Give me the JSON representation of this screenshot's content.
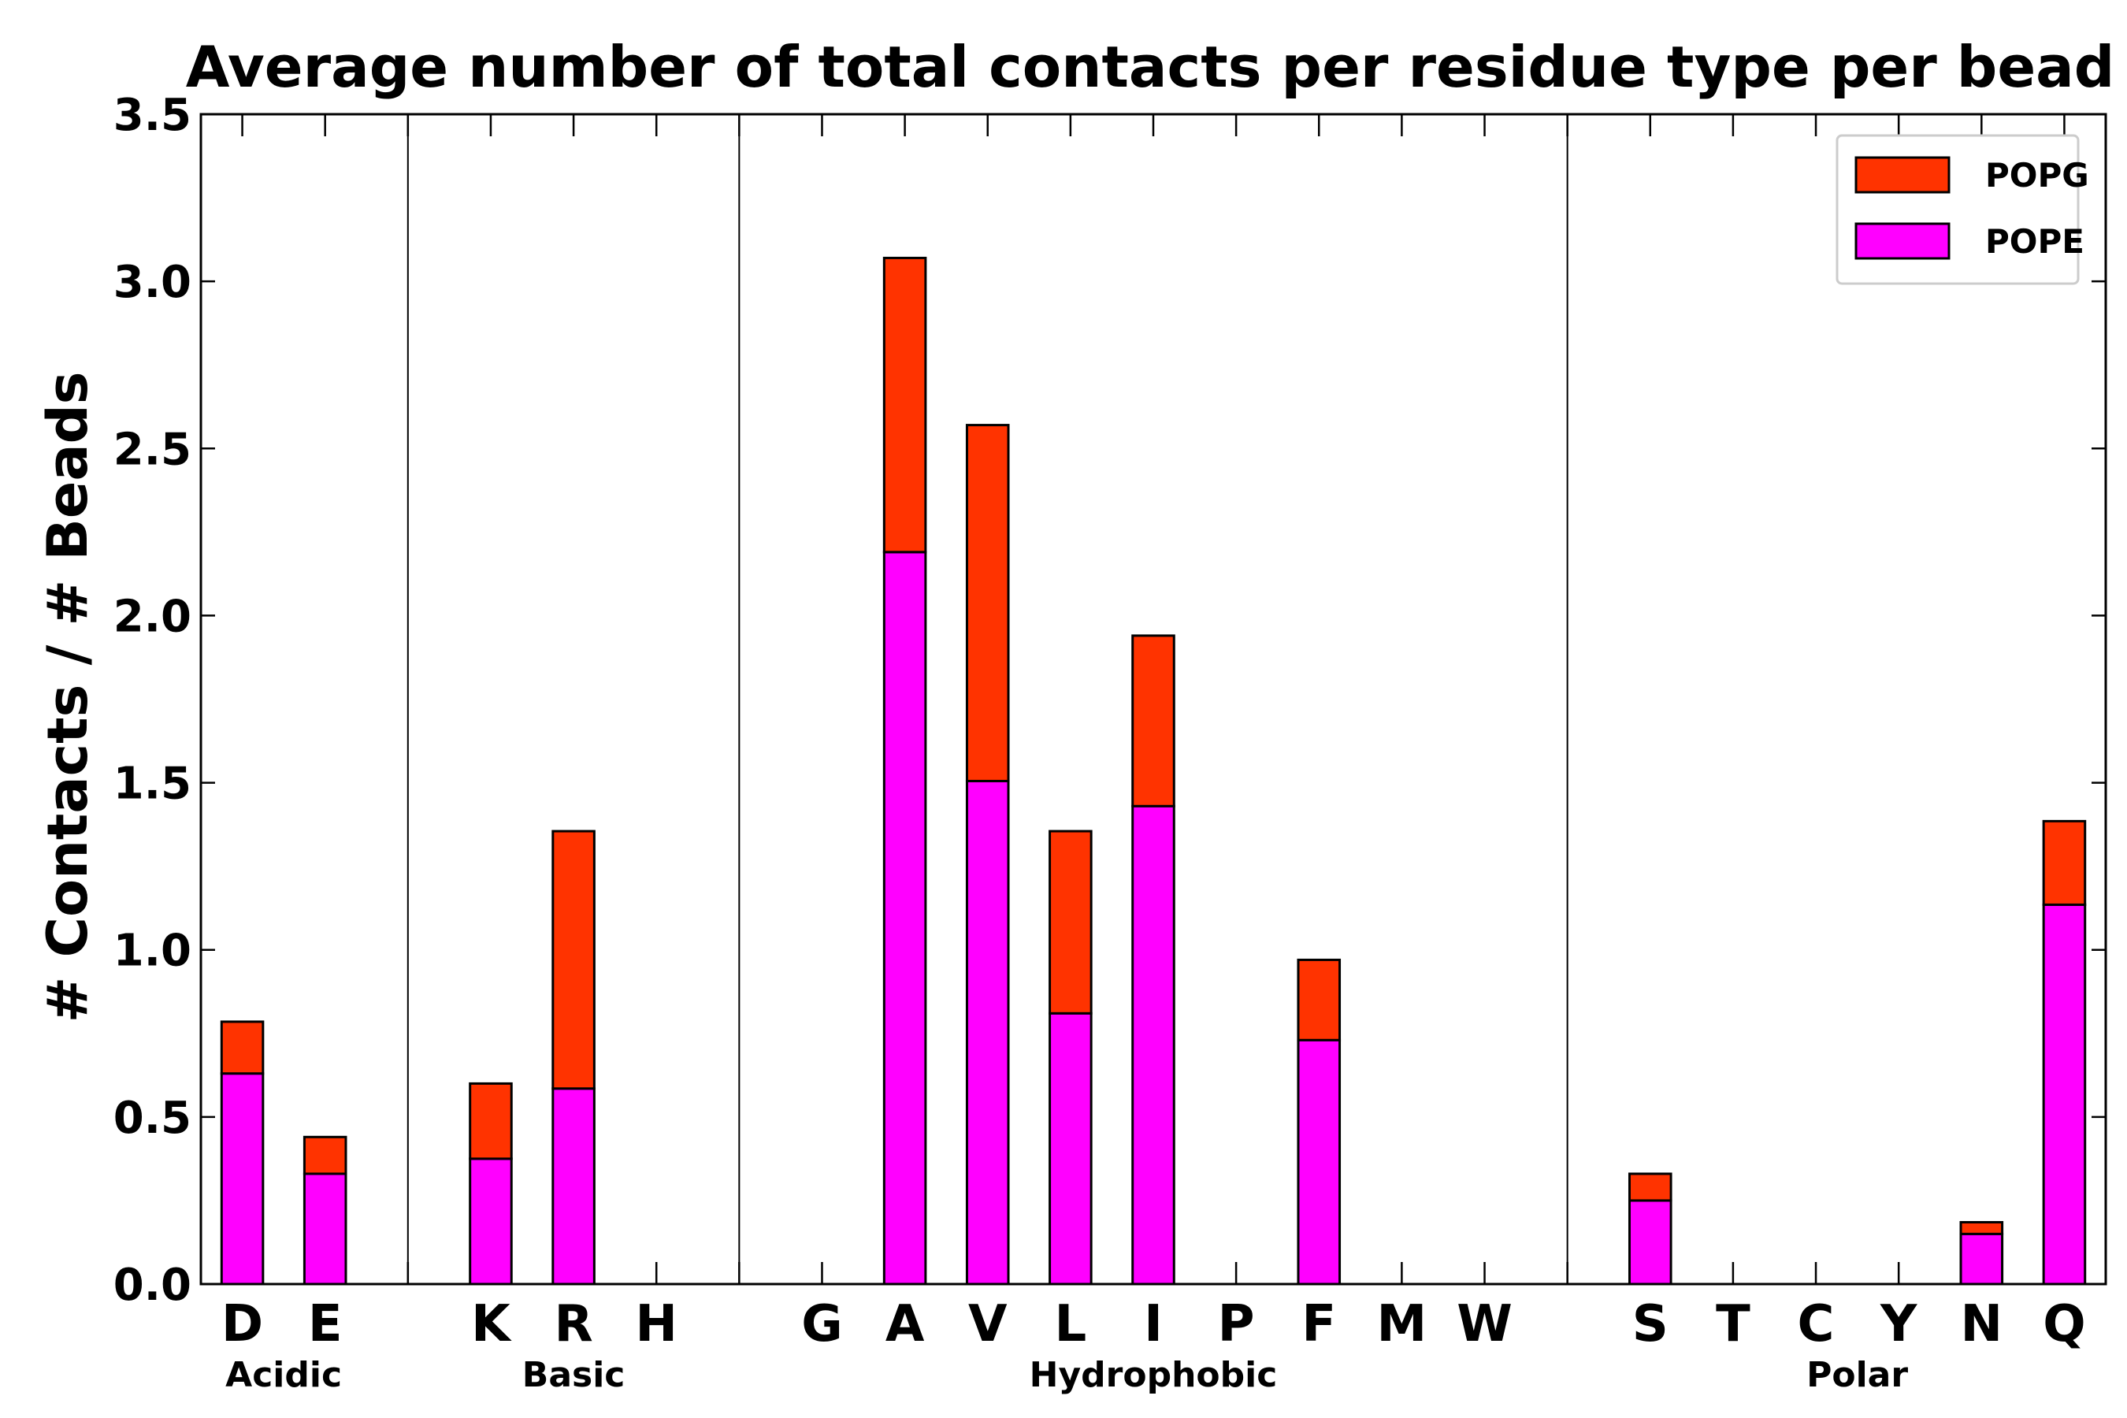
{
  "chart_data": {
    "type": "bar",
    "stacked": true,
    "title": "Average number of total contacts per residue type per bead",
    "xlabel": "",
    "ylabel": "# Contacts / # Beads",
    "ylim": [
      0,
      3.5
    ],
    "yticks": [
      "0.0",
      "0.5",
      "1.0",
      "1.5",
      "2.0",
      "2.5",
      "3.0",
      "3.5"
    ],
    "yticks_values": [
      0,
      0.5,
      1.0,
      1.5,
      2.0,
      2.5,
      3.0,
      3.5
    ],
    "slots": [
      {
        "label": "D",
        "pope": 0.63,
        "popg": 0.155
      },
      {
        "label": "E",
        "pope": 0.33,
        "popg": 0.11
      },
      {
        "label": "",
        "pope": 0,
        "popg": 0
      },
      {
        "label": "K",
        "pope": 0.375,
        "popg": 0.225
      },
      {
        "label": "R",
        "pope": 0.585,
        "popg": 0.77
      },
      {
        "label": "H",
        "pope": 0,
        "popg": 0
      },
      {
        "label": "",
        "pope": 0,
        "popg": 0
      },
      {
        "label": "G",
        "pope": 0,
        "popg": 0
      },
      {
        "label": "A",
        "pope": 2.19,
        "popg": 0.88
      },
      {
        "label": "V",
        "pope": 1.505,
        "popg": 1.065
      },
      {
        "label": "L",
        "pope": 0.81,
        "popg": 0.545
      },
      {
        "label": "I",
        "pope": 1.43,
        "popg": 0.51
      },
      {
        "label": "P",
        "pope": 0,
        "popg": 0
      },
      {
        "label": "F",
        "pope": 0.73,
        "popg": 0.24
      },
      {
        "label": "M",
        "pope": 0,
        "popg": 0
      },
      {
        "label": "W",
        "pope": 0,
        "popg": 0
      },
      {
        "label": "",
        "pope": 0,
        "popg": 0
      },
      {
        "label": "S",
        "pope": 0.25,
        "popg": 0.08
      },
      {
        "label": "T",
        "pope": 0,
        "popg": 0
      },
      {
        "label": "C",
        "pope": 0,
        "popg": 0
      },
      {
        "label": "Y",
        "pope": 0,
        "popg": 0
      },
      {
        "label": "N",
        "pope": 0.15,
        "popg": 0.035
      },
      {
        "label": "Q",
        "pope": 1.135,
        "popg": 0.25
      }
    ],
    "series": [
      {
        "name": "POPG",
        "color": "#ff3300"
      },
      {
        "name": "POPE",
        "color": "#ff00ff"
      }
    ],
    "separators_after_slot": [
      2,
      6,
      16
    ],
    "groups": [
      {
        "label": "Acidic",
        "from": 0,
        "to": 1
      },
      {
        "label": "Basic",
        "from": 3,
        "to": 5
      },
      {
        "label": "Hydrophobic",
        "from": 7,
        "to": 15
      },
      {
        "label": "Polar",
        "from": 17,
        "to": 22
      }
    ],
    "legend": {
      "position": "top-right",
      "entries": [
        "POPG",
        "POPE"
      ]
    },
    "grid": false
  }
}
